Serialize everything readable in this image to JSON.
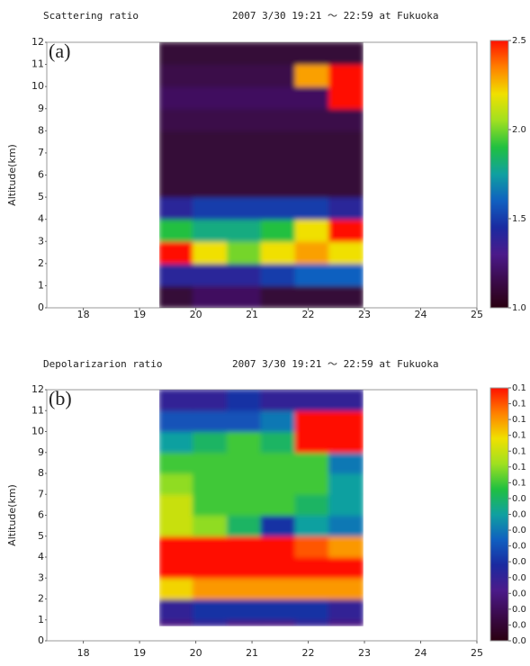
{
  "chart_data": [
    {
      "type": "heatmap",
      "title": "Scattering ratio",
      "subtitle": "2007 3/30 19:21 ～ 22:59 at Fukuoka",
      "panel_label": "(a)",
      "y_label": "Altitude(km)",
      "xlim": [
        17.35,
        25
      ],
      "xticks": [
        18,
        19,
        20,
        21,
        22,
        23,
        24,
        25
      ],
      "ylim": [
        0,
        12
      ],
      "yticks": [
        0,
        1,
        2,
        3,
        4,
        5,
        6,
        7,
        8,
        9,
        10,
        11,
        12
      ],
      "x_edges": [
        19.35,
        19.95,
        20.56,
        21.16,
        21.77,
        22.37,
        22.98
      ],
      "y_edges": [
        0,
        1,
        2,
        3,
        4,
        5,
        6,
        7,
        8,
        9,
        10,
        11,
        12
      ],
      "z": [
        [
          1.1,
          1.2,
          1.2,
          1.1,
          1.1,
          1.1
        ],
        [
          1.4,
          1.4,
          1.4,
          1.5,
          1.6,
          1.6
        ],
        [
          2.5,
          2.2,
          2.0,
          2.2,
          2.3,
          2.2
        ],
        [
          1.9,
          1.8,
          1.8,
          1.9,
          2.2,
          2.5
        ],
        [
          1.4,
          1.5,
          1.5,
          1.5,
          1.5,
          1.4
        ],
        [
          1.1,
          1.1,
          1.1,
          1.1,
          1.1,
          1.1
        ],
        [
          1.1,
          1.1,
          1.1,
          1.1,
          1.1,
          1.1
        ],
        [
          1.1,
          1.1,
          1.1,
          1.1,
          1.1,
          1.1
        ],
        [
          1.15,
          1.15,
          1.15,
          1.15,
          1.15,
          1.15
        ],
        [
          1.2,
          1.2,
          1.2,
          1.2,
          1.2,
          2.5
        ],
        [
          1.15,
          1.15,
          1.15,
          1.15,
          2.3,
          2.5
        ],
        [
          1.1,
          1.1,
          1.1,
          1.1,
          1.1,
          1.1
        ]
      ],
      "colorbar_lim": [
        1,
        2.5
      ],
      "colorbar_ticks": [
        {
          "value": 1,
          "label": "1.0"
        },
        {
          "value": 1.5,
          "label": "1.5"
        },
        {
          "value": 2,
          "label": "2.0"
        },
        2.5
      ],
      "colormap": [
        "#2a0010",
        "#3a0a4a",
        "#4b1a8a",
        "#1a2aa0",
        "#1060c0",
        "#10a0a0",
        "#20c040",
        "#a0e020",
        "#f0e000",
        "#ff8000",
        "#ff1000"
      ]
    },
    {
      "type": "heatmap",
      "title": "Depolarizarion ratio",
      "subtitle": "2007 3/30 19:21 ～ 22:59 at Fukuoka",
      "panel_label": "(b)",
      "y_label": "Altitude(km)",
      "xlim": [
        17.35,
        25
      ],
      "xticks": [
        18,
        19,
        20,
        21,
        22,
        23,
        24,
        25
      ],
      "ylim": [
        0,
        12
      ],
      "yticks": [
        0,
        1,
        2,
        3,
        4,
        5,
        6,
        7,
        8,
        9,
        10,
        11,
        12
      ],
      "x_edges": [
        19.35,
        19.95,
        20.56,
        21.16,
        21.77,
        22.37,
        22.98
      ],
      "y_edges": [
        0.7,
        1,
        2,
        3,
        4,
        5,
        6,
        7,
        8,
        9,
        10,
        11,
        12
      ],
      "z": [
        [
          0.015,
          0.02,
          0.015,
          0.015,
          0.02,
          0.015
        ],
        [
          0.02,
          0.025,
          0.025,
          0.025,
          0.025,
          0.02
        ],
        [
          0.065,
          0.07,
          0.07,
          0.07,
          0.07,
          0.07
        ],
        [
          0.08,
          0.08,
          0.08,
          0.08,
          0.08,
          0.08
        ],
        [
          0.08,
          0.08,
          0.08,
          0.08,
          0.075,
          0.07
        ],
        [
          0.06,
          0.055,
          0.045,
          0.025,
          0.04,
          0.035
        ],
        [
          0.06,
          0.05,
          0.05,
          0.05,
          0.045,
          0.04
        ],
        [
          0.055,
          0.05,
          0.05,
          0.05,
          0.05,
          0.04
        ],
        [
          0.05,
          0.05,
          0.05,
          0.05,
          0.05,
          0.035
        ],
        [
          0.04,
          0.045,
          0.05,
          0.045,
          0.08,
          0.08
        ],
        [
          0.03,
          0.03,
          0.03,
          0.035,
          0.08,
          0.08
        ],
        [
          0.02,
          0.02,
          0.025,
          0.02,
          0.02,
          0.02
        ]
      ],
      "colorbar_lim": [
        0,
        0.08
      ],
      "colorbar_ticks": [
        {
          "value": 0,
          "label": "0.0"
        },
        {
          "value": 0.005,
          "label": "0.0"
        },
        {
          "value": 0.01,
          "label": "0.0"
        },
        {
          "value": 0.015,
          "label": "0.0"
        },
        {
          "value": 0.02,
          "label": "0.0"
        },
        {
          "value": 0.025,
          "label": "0.0"
        },
        {
          "value": 0.03,
          "label": "0.0"
        },
        {
          "value": 0.035,
          "label": "0.0"
        },
        {
          "value": 0.04,
          "label": "0.0"
        },
        {
          "value": 0.045,
          "label": "0.0"
        },
        {
          "value": 0.05,
          "label": "0.1"
        },
        {
          "value": 0.055,
          "label": "0.1"
        },
        {
          "value": 0.06,
          "label": "0.1"
        },
        {
          "value": 0.065,
          "label": "0.1"
        },
        {
          "value": 0.07,
          "label": "0.1"
        },
        {
          "value": 0.075,
          "label": "0.1"
        },
        {
          "value": 0.08,
          "label": "0.1"
        }
      ],
      "colormap": [
        "#2a0010",
        "#3a0a4a",
        "#4b1a8a",
        "#1a2aa0",
        "#1060c0",
        "#10a0a0",
        "#20c040",
        "#a0e020",
        "#f0e000",
        "#ff8000",
        "#ff1000"
      ]
    }
  ]
}
